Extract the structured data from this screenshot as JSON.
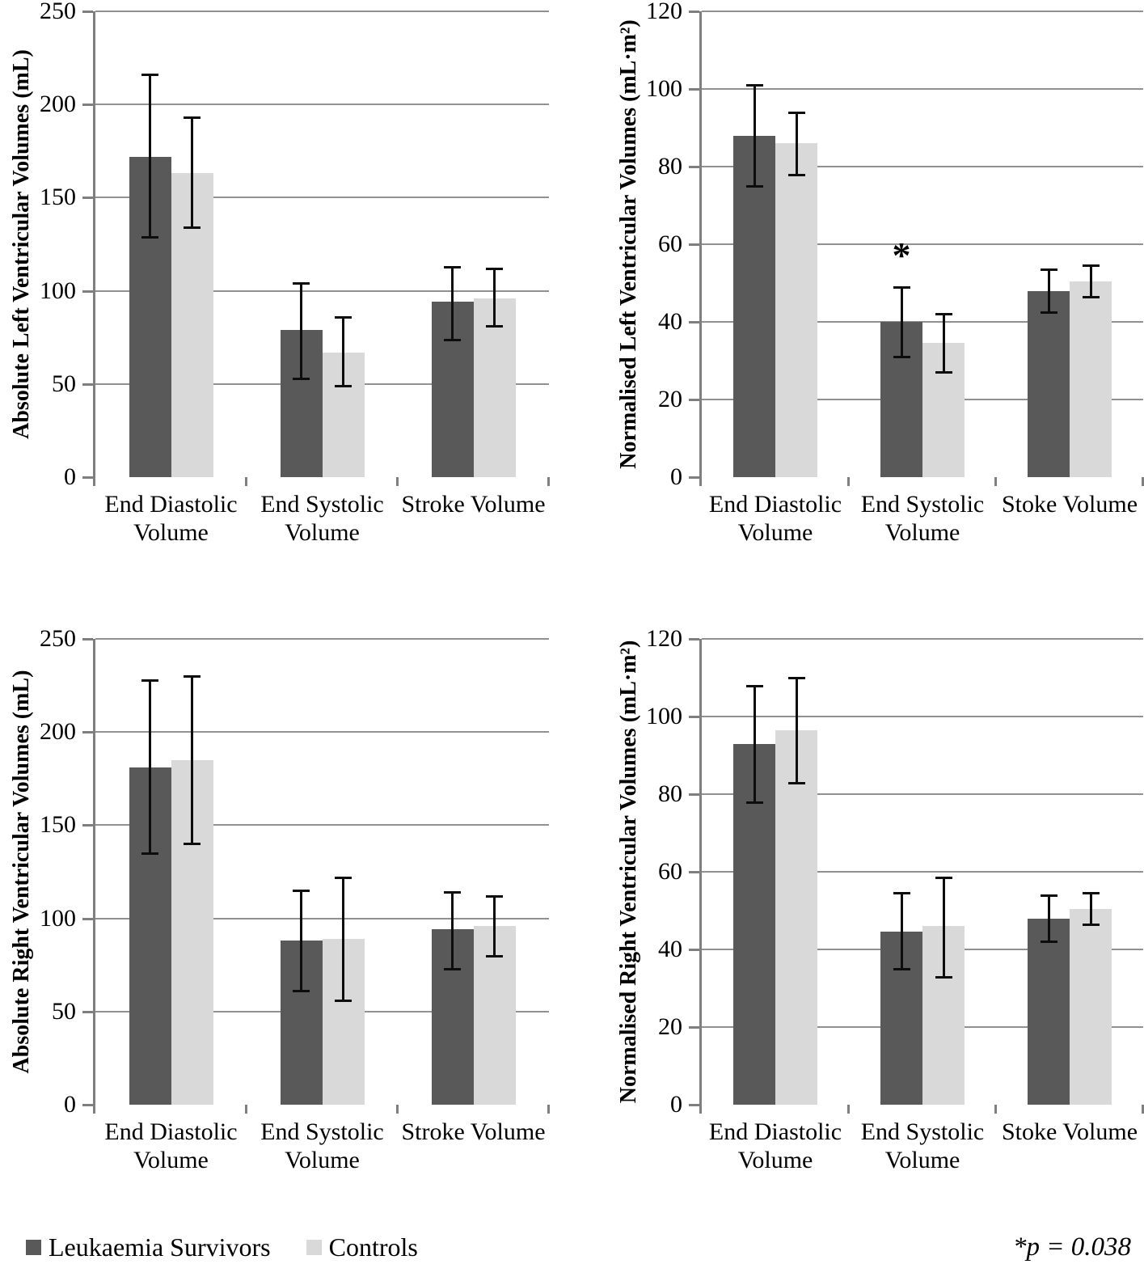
{
  "chart_data": [
    {
      "type": "bar",
      "id": "absolute-left-ventricular",
      "ylabel": "Absolute Left Ventricular Volumes (mL)",
      "ylim": [
        0,
        250
      ],
      "yticks": [
        0,
        50,
        100,
        150,
        200,
        250
      ],
      "grid": true,
      "categories": [
        "End Diastolic\nVolume",
        "End Systolic\nVolume",
        "Stroke Volume"
      ],
      "series": [
        {
          "name": "Leukaemia Survivors",
          "values": [
            172,
            79,
            94
          ],
          "errors_lo": [
            129,
            53,
            74
          ],
          "errors_hi": [
            216,
            104,
            113
          ]
        },
        {
          "name": "Controls",
          "values": [
            163,
            67,
            96
          ],
          "errors_lo": [
            134,
            49,
            81
          ],
          "errors_hi": [
            193,
            86,
            112
          ]
        }
      ]
    },
    {
      "type": "bar",
      "id": "normalised-left-ventricular",
      "ylabel": "Normalised Left Ventricular Volumes (mL·m²)",
      "ylim": [
        0,
        120
      ],
      "yticks": [
        0,
        20,
        40,
        60,
        80,
        100,
        120
      ],
      "grid": true,
      "categories": [
        "End Diastolic\nVolume",
        "End Systolic\nVolume",
        "Stoke Volume"
      ],
      "series": [
        {
          "name": "Leukaemia Survivors",
          "values": [
            88,
            40,
            48
          ],
          "errors_lo": [
            75,
            31,
            42.5
          ],
          "errors_hi": [
            101,
            49,
            53.5
          ]
        },
        {
          "name": "Controls",
          "values": [
            86,
            34.5,
            50.5
          ],
          "errors_lo": [
            78,
            27,
            46.5
          ],
          "errors_hi": [
            94,
            42,
            54.5
          ]
        }
      ],
      "annotation": {
        "symbol": "*",
        "category_index": 1,
        "series_index": 0
      }
    },
    {
      "type": "bar",
      "id": "absolute-right-ventricular",
      "ylabel": "Absolute Right Ventricular Volumes (mL)",
      "ylim": [
        0,
        250
      ],
      "yticks": [
        0,
        50,
        100,
        150,
        200,
        250
      ],
      "grid": true,
      "categories": [
        "End Diastolic\nVolume",
        "End Systolic\nVolume",
        "Stroke Volume"
      ],
      "series": [
        {
          "name": "Leukaemia Survivors",
          "values": [
            181,
            88,
            94
          ],
          "errors_lo": [
            135,
            61,
            73
          ],
          "errors_hi": [
            228,
            115,
            114
          ]
        },
        {
          "name": "Controls",
          "values": [
            185,
            89,
            96
          ],
          "errors_lo": [
            140,
            56,
            80
          ],
          "errors_hi": [
            230,
            122,
            112
          ]
        }
      ]
    },
    {
      "type": "bar",
      "id": "normalised-right-ventricular",
      "ylabel": "Normalised Right Ventricular Volumes (mL·m²)",
      "ylim": [
        0,
        120
      ],
      "yticks": [
        0,
        20,
        40,
        60,
        80,
        100,
        120
      ],
      "grid": true,
      "categories": [
        "End Diastolic\nVolume",
        "End Systolic\nVolume",
        "Stoke Volume"
      ],
      "series": [
        {
          "name": "Leukaemia Survivors",
          "values": [
            93,
            44.5,
            48
          ],
          "errors_lo": [
            78,
            35,
            42
          ],
          "errors_hi": [
            108,
            54.5,
            54
          ]
        },
        {
          "name": "Controls",
          "values": [
            96.5,
            46,
            50.5
          ],
          "errors_lo": [
            83,
            33,
            46.5
          ],
          "errors_hi": [
            110,
            58.5,
            54.5
          ]
        }
      ]
    }
  ],
  "legend": {
    "items": [
      {
        "label": "Leukaemia Survivors",
        "color": "#595959"
      },
      {
        "label": "Controls",
        "color": "#D9D9D9"
      }
    ]
  },
  "note": "*p = 0.038",
  "colors": {
    "series_dark": "#595959",
    "series_light": "#D9D9D9",
    "gridline": "#919191",
    "axis": "#7f7f7f",
    "error_bar": "#0d0d0d"
  }
}
